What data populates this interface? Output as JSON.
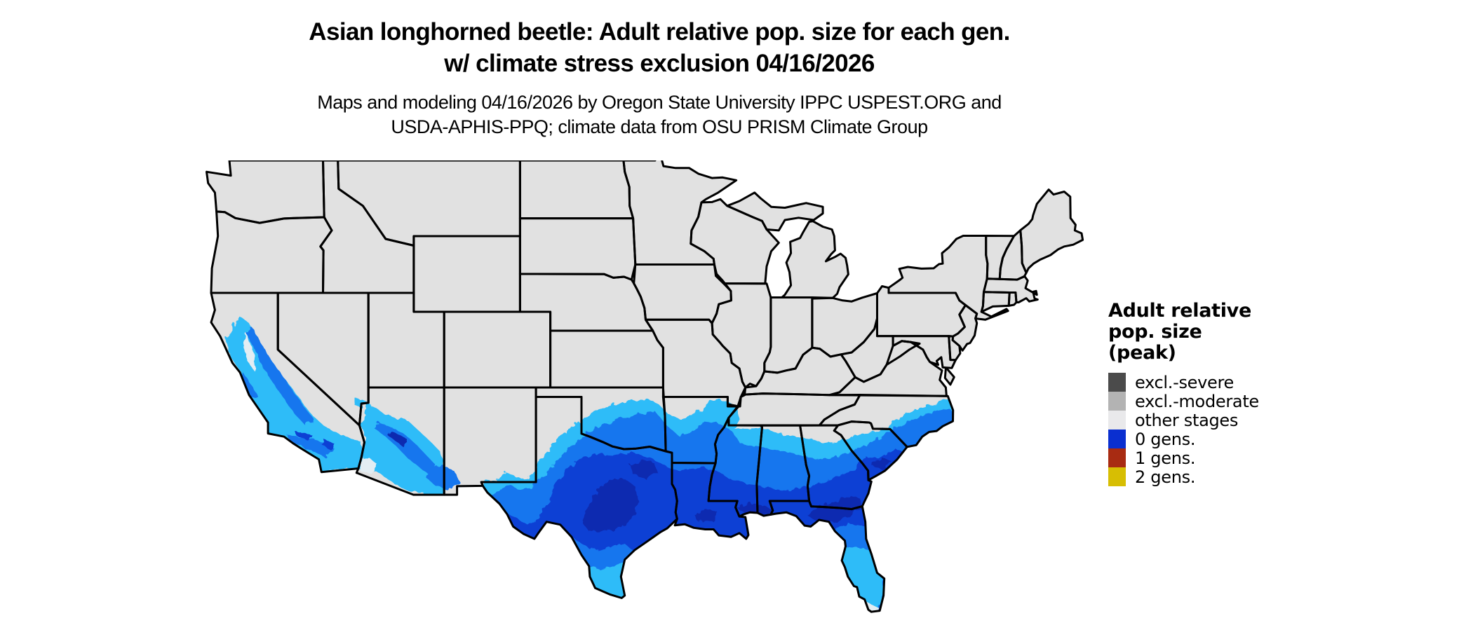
{
  "header": {
    "title_line1": "Asian longhorned beetle: Adult relative pop. size for each gen.",
    "title_line2": "w/ climate stress exclusion 04/16/2026",
    "subtitle_line1": "Maps and modeling 04/16/2026 by Oregon State University IPPC USPEST.ORG and",
    "subtitle_line2": "USDA-APHIS-PPQ; climate data from OSU PRISM Climate Group"
  },
  "legend": {
    "title_lines": [
      "Adult relative",
      "pop. size",
      "(peak)"
    ],
    "items": [
      {
        "label": "excl.-severe",
        "color": "#4B4B4B"
      },
      {
        "label": "excl.-moderate",
        "color": "#B3B3B3"
      },
      {
        "label": "other stages",
        "color": "#E9E9EB"
      },
      {
        "label": "0 gens.",
        "color": "#0A2FD0"
      },
      {
        "label": "1 gens.",
        "color": "#A82B12"
      },
      {
        "label": "2 gens.",
        "color": "#D7BE03"
      }
    ]
  },
  "map": {
    "background": "#FFFFFF",
    "state_fill": "#E1E1E1",
    "state_border": "#000000",
    "population_colors": {
      "pale": "#E3EDF3",
      "cyan": "#2EBCF8",
      "medium": "#1976EE",
      "deep": "#0E3FD4",
      "navy": "#0A2BB0"
    }
  }
}
